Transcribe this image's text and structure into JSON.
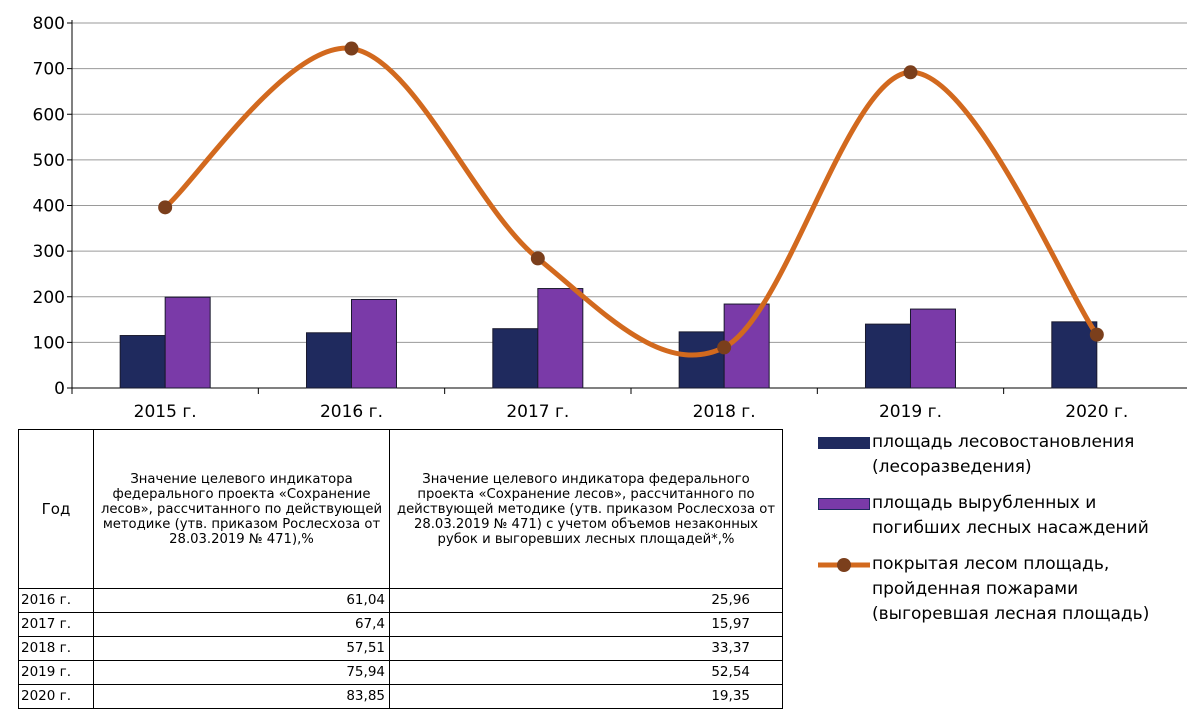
{
  "chart_data": {
    "type": "bar",
    "categories": [
      "2015 г.",
      "2016 г.",
      "2017 г.",
      "2018 г.",
      "2019 г.",
      "2020 г."
    ],
    "ylim": [
      0,
      800
    ],
    "yticks": [
      "0",
      "100",
      "200",
      "300",
      "400",
      "500",
      "600",
      "700",
      "800"
    ],
    "grid": true,
    "series": [
      {
        "name": "площадь лесовостановления (лесоразведения)",
        "kind": "bar",
        "color": "#1f2a5e",
        "values": [
          115,
          121,
          130,
          123,
          140,
          145
        ]
      },
      {
        "name": "площадь вырубленных  и погибших лесных насаждений",
        "kind": "bar",
        "color": "#7a3aa8",
        "values": [
          199,
          194,
          218,
          184,
          173,
          null
        ]
      },
      {
        "name": "покрытая лесом площадь, пройденная пожарами (выгоревшая лесная площадь)",
        "kind": "line",
        "color": "#d2691e",
        "values": [
          396,
          744,
          284,
          89,
          692,
          117
        ]
      }
    ]
  },
  "legend": {
    "items": [
      {
        "lines": [
          "площадь лесовостановления",
          "(лесоразведения)"
        ]
      },
      {
        "lines": [
          "площадь вырубленных  и",
          "погибших лесных насаждений"
        ]
      },
      {
        "lines": [
          "покрытая лесом площадь,",
          "пройденная пожарами",
          "(выгоревшая лесная площадь)"
        ]
      }
    ]
  },
  "table": {
    "headers": [
      "Год",
      "Значение целевого индикатора федерального проекта «Сохранение лесов», рассчитанного по действующей методике (утв. приказом Рослесхоза от 28.03.2019 № 471),%",
      "Значение целевого индикатора федерального проекта «Сохранение лесов»,  рассчитанного по действующей методике (утв. приказом Рослесхоза от 28.03.2019 № 471) с учетом объемов незаконных рубок и выгоревших лесных площадей*,%"
    ],
    "rows": [
      [
        "2016 г.",
        "61,04",
        "25,96"
      ],
      [
        "2017 г.",
        "67,4",
        "15,97"
      ],
      [
        "2018 г.",
        "57,51",
        "33,37"
      ],
      [
        "2019 г.",
        "75,94",
        "52,54"
      ],
      [
        "2020 г.",
        "83,85",
        "19,35"
      ]
    ]
  }
}
